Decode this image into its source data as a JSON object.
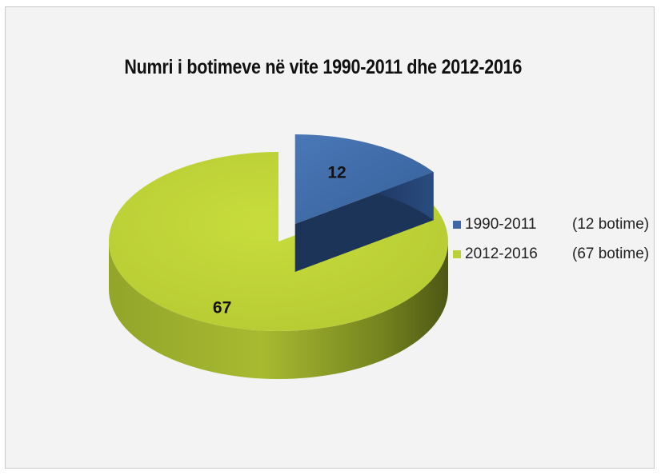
{
  "chart_data": {
    "type": "pie",
    "title": "Numri i botimeve në vite 1990-2011 dhe 2012-2016",
    "slices": [
      {
        "label": "1990-2011",
        "count_text": "(12 botime)",
        "value": 12,
        "data_label": "12",
        "color": "#3d6aa6",
        "exploded": true
      },
      {
        "label": "2012-2016",
        "count_text": "(67 botime)",
        "value": 67,
        "data_label": "67",
        "color": "#bcd135",
        "exploded": false
      }
    ],
    "legend_position": "right",
    "style": "3d"
  }
}
